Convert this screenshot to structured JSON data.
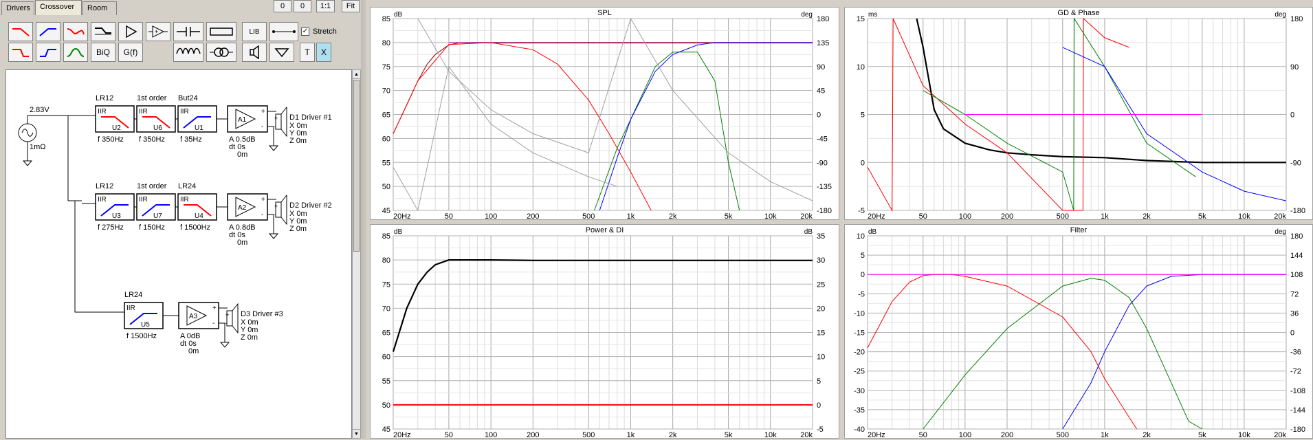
{
  "tabs": [
    "Drivers",
    "Crossover",
    "Room"
  ],
  "top_buttons": [
    "0",
    "0",
    "1:1",
    "Fit"
  ],
  "toolbar": {
    "lib_label": "LIB",
    "biq_label": "BiQ",
    "gf_label": "G(f)",
    "t_label": "T",
    "x_label": "X",
    "stretch_label": "Stretch",
    "stretch_checked": true
  },
  "schematic": {
    "source": {
      "voltage": "2.83V",
      "impedance": "1mΩ"
    },
    "branches": [
      {
        "filters": [
          {
            "header": "LR12",
            "type": "IIR",
            "name": "U2",
            "freq": "f  350Hz",
            "shape": "lp",
            "color": "#ff0000"
          },
          {
            "header": "1st order",
            "type": "IIR",
            "name": "U6",
            "freq": "f  350Hz",
            "shape": "lp",
            "color": "#ff0000"
          },
          {
            "header": "But24",
            "type": "IIR",
            "name": "U1",
            "freq": "f  35Hz",
            "shape": "hp",
            "color": "#0000ff"
          }
        ],
        "amp": {
          "name": "A1",
          "gain": "A  0.5dB",
          "dt": "dt  0s",
          "dist": "0m"
        },
        "driver": {
          "name": "D1 Driver #1",
          "x": "X  0m",
          "y": "Y  0m",
          "z": "Z  0m"
        }
      },
      {
        "filters": [
          {
            "header": "LR12",
            "type": "IIR",
            "name": "U3",
            "freq": "f  275Hz",
            "shape": "hp",
            "color": "#0000ff"
          },
          {
            "header": "1st order",
            "type": "IIR",
            "name": "U7",
            "freq": "f  150Hz",
            "shape": "hp",
            "color": "#0000ff"
          },
          {
            "header": "LR24",
            "type": "IIR",
            "name": "U4",
            "freq": "f  1500Hz",
            "shape": "lp",
            "color": "#ff0000"
          }
        ],
        "amp": {
          "name": "A2",
          "gain": "A  0.8dB",
          "dt": "dt  0s",
          "dist": "0m"
        },
        "driver": {
          "name": "D2 Driver #2",
          "x": "X  0m",
          "y": "Y  0m",
          "z": "Z  0m"
        }
      },
      {
        "filters": [
          {
            "header": "LR24",
            "type": "IIR",
            "name": "U5",
            "freq": "f  1500Hz",
            "shape": "hp",
            "color": "#0000ff"
          }
        ],
        "amp": {
          "name": "A3",
          "gain": "A  0dB",
          "dt": "dt  0s",
          "dist": "0m"
        },
        "driver": {
          "name": "D3 Driver #3",
          "x": "X  0m",
          "y": "Y  0m",
          "z": "Z  0m"
        }
      }
    ]
  },
  "chart_data": [
    {
      "type": "line",
      "title": "SPL",
      "left_unit": "dB",
      "right_unit": "deg",
      "xscale": "log",
      "xlim": [
        20,
        20000
      ],
      "ylim": [
        45,
        85
      ],
      "y2lim": [
        -180,
        180
      ],
      "x_ticks": [
        "20Hz",
        "50",
        "100",
        "200",
        "500",
        "1k",
        "2k",
        "5k",
        "10k",
        "20k"
      ],
      "y_ticks": [
        "85",
        "80",
        "75",
        "70",
        "65",
        "60",
        "55",
        "50",
        "45"
      ],
      "y2_ticks": [
        "180",
        "135",
        "90",
        "45",
        "0",
        "-45",
        "-90",
        "-135",
        "-180"
      ],
      "series": [
        {
          "color": "#880000",
          "x": [
            20,
            25,
            30,
            35,
            40,
            50,
            60,
            80,
            100,
            200,
            500,
            1000,
            2000,
            5000,
            10000,
            20000
          ],
          "y": [
            61,
            67,
            72,
            75.5,
            77.5,
            79.5,
            80,
            80,
            80,
            80,
            80,
            80,
            80,
            80,
            80,
            80
          ]
        },
        {
          "color": "#ff0000",
          "x": [
            20,
            30,
            50,
            100,
            200,
            300,
            500,
            700,
            1000,
            1400
          ],
          "y": [
            61,
            72,
            79.6,
            80,
            78.5,
            75.5,
            68,
            61,
            53,
            45
          ]
        },
        {
          "color": "#008000",
          "x": [
            550,
            800,
            1000,
            1500,
            2000,
            3000,
            4000,
            5000,
            6000
          ],
          "y": [
            45,
            58,
            64,
            75,
            78,
            78,
            72,
            55,
            45
          ]
        },
        {
          "color": "#0000ff",
          "x": [
            600,
            800,
            1000,
            1500,
            2000,
            3000,
            4000,
            5000,
            20000
          ],
          "y": [
            45,
            56,
            64,
            74,
            77.5,
            79.5,
            80,
            80,
            80
          ]
        },
        {
          "color": "#aa00aa",
          "x": [
            50,
            100,
            1000,
            5000,
            20000
          ],
          "y": [
            80,
            79.9,
            79.9,
            79.9,
            79.9
          ]
        },
        {
          "color": "#a0a0a0",
          "x": [
            20,
            30,
            50,
            100,
            200,
            500,
            800
          ],
          "y": [
            54,
            45,
            75,
            63,
            57,
            52,
            50
          ]
        },
        {
          "color": "#a0a0a0",
          "x": [
            30,
            50,
            100,
            200,
            500,
            1000,
            2000,
            5000,
            10000,
            20000
          ],
          "y": [
            85,
            74,
            66,
            61,
            57,
            85,
            70,
            57,
            51,
            47
          ]
        }
      ]
    },
    {
      "type": "line",
      "title": "GD & Phase",
      "left_unit": "ms",
      "right_unit": "deg",
      "xscale": "log",
      "xlim": [
        20,
        20000
      ],
      "ylim": [
        -5,
        15
      ],
      "y2lim": [
        -180,
        180
      ],
      "x_ticks": [
        "20Hz",
        "50",
        "100",
        "200",
        "500",
        "1k",
        "2k",
        "5k",
        "10k",
        "20k"
      ],
      "y_ticks": [
        "15",
        "10",
        "5",
        "0",
        "-5"
      ],
      "y2_ticks": [
        "180",
        "90",
        "0",
        "-90",
        "-180"
      ],
      "series": [
        {
          "color": "#000000",
          "x": [
            45,
            50,
            60,
            70,
            100,
            150,
            200,
            300,
            500,
            1000,
            2000,
            5000,
            10000,
            20000
          ],
          "y": [
            15,
            12,
            5.5,
            3.5,
            2,
            1.3,
            1,
            0.8,
            0.6,
            0.5,
            0.2,
            0,
            0,
            0
          ]
        },
        {
          "color": "#ff0000",
          "x": [
            20,
            30,
            30.5,
            50,
            100,
            200,
            500,
            700
          ],
          "y": [
            -0.5,
            -5,
            15,
            8,
            4,
            1,
            -5,
            -5
          ]
        },
        {
          "color": "#ff0000",
          "x": [
            700,
            705,
            1000,
            1500
          ],
          "y": [
            -5,
            15,
            13,
            12
          ]
        },
        {
          "color": "#008000",
          "x": [
            50,
            100,
            200,
            500,
            600,
            605,
            1000,
            2000,
            4500
          ],
          "y": [
            7.5,
            5,
            2,
            -1,
            -5,
            15,
            10,
            2,
            -1.5
          ]
        },
        {
          "color": "#0000ff",
          "x": [
            500,
            1000,
            2000,
            5000,
            10000,
            20000
          ],
          "y": [
            12,
            10,
            3,
            -1,
            -3,
            -4
          ]
        },
        {
          "color": "#ff00ff",
          "x": [
            100,
            5000
          ],
          "y": [
            5,
            5
          ]
        }
      ]
    },
    {
      "type": "line",
      "title": "Power & DI",
      "left_unit": "dB",
      "right_unit": "dB",
      "xscale": "log",
      "xlim": [
        20,
        20000
      ],
      "ylim": [
        45,
        85
      ],
      "y2lim": [
        -5,
        35
      ],
      "x_ticks": [
        "20Hz",
        "50",
        "100",
        "200",
        "500",
        "1k",
        "2k",
        "5k",
        "10k",
        "20k"
      ],
      "y_ticks": [
        "85",
        "80",
        "75",
        "70",
        "65",
        "60",
        "55",
        "50",
        "45"
      ],
      "y2_ticks": [
        "35",
        "30",
        "25",
        "20",
        "15",
        "10",
        "5",
        "0",
        "-5"
      ],
      "series": [
        {
          "color": "#000000",
          "x": [
            20,
            25,
            30,
            35,
            40,
            50,
            60,
            100,
            200,
            500,
            1000,
            2000,
            5000,
            10000,
            20000
          ],
          "y": [
            61,
            70,
            75,
            77.5,
            79,
            80,
            80,
            80,
            79.9,
            79.9,
            79.9,
            79.9,
            79.9,
            79.9,
            79.9
          ]
        },
        {
          "color": "#ff0000",
          "x": [
            20,
            20000
          ],
          "y": [
            50,
            50
          ]
        }
      ]
    },
    {
      "type": "line",
      "title": "Filter",
      "left_unit": "dB",
      "right_unit": "deg",
      "xscale": "log",
      "xlim": [
        20,
        20000
      ],
      "ylim": [
        -40,
        10
      ],
      "y2lim": [
        -180,
        180
      ],
      "x_ticks": [
        "20Hz",
        "50",
        "100",
        "200",
        "500",
        "1k",
        "2k",
        "5k",
        "10k",
        "20k"
      ],
      "y_ticks": [
        "10",
        "5",
        "0",
        "-5",
        "-10",
        "-15",
        "-20",
        "-25",
        "-30",
        "-35",
        "-40"
      ],
      "y2_ticks": [
        "180",
        "144",
        "108",
        "72",
        "36",
        "0",
        "-36",
        "-72",
        "-108",
        "-144",
        "-180"
      ],
      "series": [
        {
          "color": "#ff0000",
          "x": [
            20,
            30,
            40,
            50,
            60,
            80,
            100,
            200,
            500,
            800,
            1000,
            1500,
            1700
          ],
          "y": [
            -19,
            -7,
            -2,
            -0.3,
            0,
            0,
            -0.5,
            -3,
            -11,
            -20,
            -27,
            -37,
            -40
          ]
        },
        {
          "color": "#008000",
          "x": [
            50,
            100,
            200,
            500,
            800,
            1000,
            1500,
            2000,
            3000,
            4000,
            5000
          ],
          "y": [
            -40,
            -26,
            -14,
            -3,
            -1,
            -1.5,
            -6,
            -14,
            -28,
            -38,
            -40
          ]
        },
        {
          "color": "#0000ff",
          "x": [
            500,
            800,
            1000,
            1500,
            2000,
            3000,
            5000,
            10000,
            20000
          ],
          "y": [
            -40,
            -28,
            -20,
            -8,
            -3,
            -0.5,
            0,
            0,
            0
          ]
        },
        {
          "color": "#ff00ff",
          "x": [
            20,
            20000
          ],
          "y": [
            0,
            0
          ]
        }
      ]
    }
  ]
}
